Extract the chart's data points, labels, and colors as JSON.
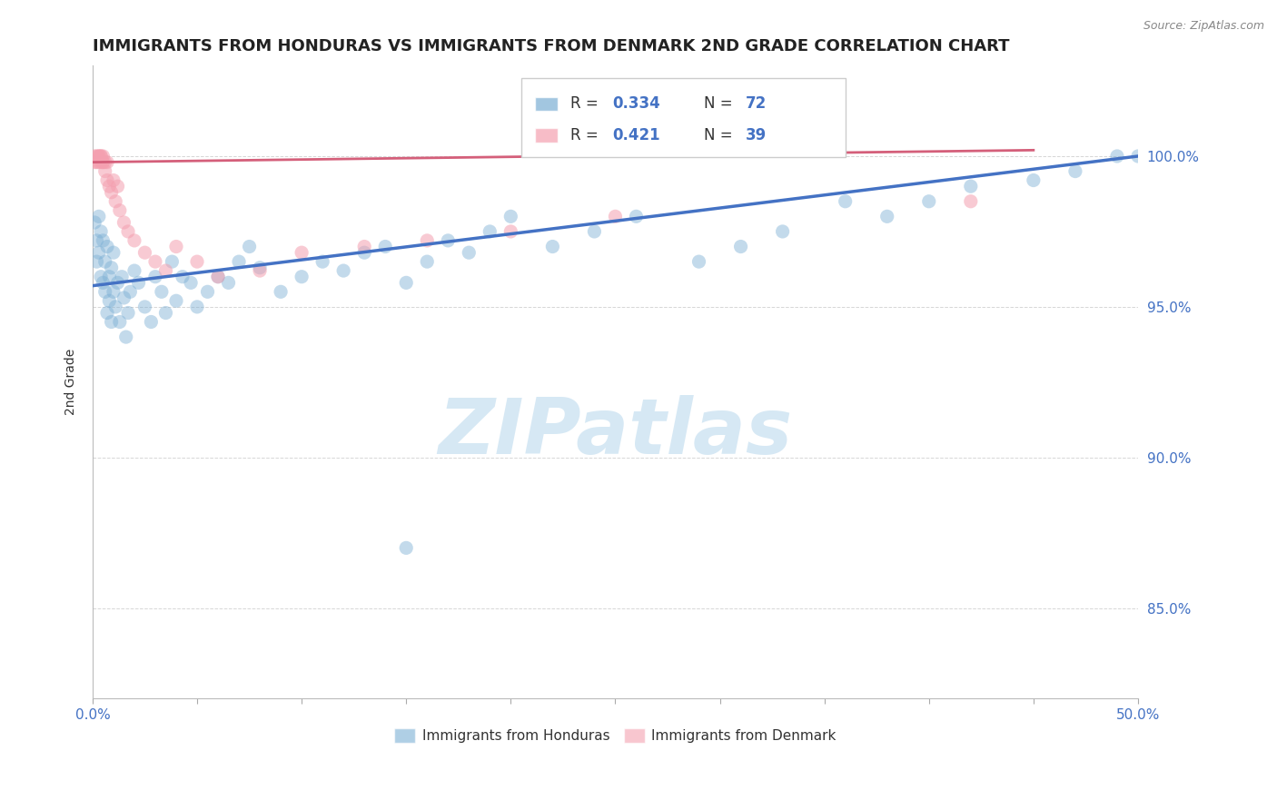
{
  "title": "IMMIGRANTS FROM HONDURAS VS IMMIGRANTS FROM DENMARK 2ND GRADE CORRELATION CHART",
  "source": "Source: ZipAtlas.com",
  "ylabel": "2nd Grade",
  "xlim": [
    0.0,
    0.5
  ],
  "ylim": [
    0.82,
    1.03
  ],
  "xticks": [
    0.0,
    0.05,
    0.1,
    0.15,
    0.2,
    0.25,
    0.3,
    0.35,
    0.4,
    0.45,
    0.5
  ],
  "xticklabels": [
    "0.0%",
    "",
    "",
    "",
    "",
    "",
    "",
    "",
    "",
    "",
    "50.0%"
  ],
  "yticks": [
    0.85,
    0.9,
    0.95,
    1.0
  ],
  "yticklabels": [
    "85.0%",
    "90.0%",
    "95.0%",
    "100.0%"
  ],
  "blue_color": "#7BAFD4",
  "pink_color": "#F4A0B0",
  "blue_line_color": "#4472C4",
  "pink_line_color": "#D45F7A",
  "legend_R_blue": "R = 0.334",
  "legend_N_blue": "N = 72",
  "legend_R_pink": "R = 0.421",
  "legend_N_pink": "N = 39",
  "legend_label_blue": "Immigrants from Honduras",
  "legend_label_pink": "Immigrants from Denmark",
  "watermark": "ZIPatlas",
  "watermark_color": "#C5DFF0",
  "title_fontsize": 13,
  "axis_label_fontsize": 10,
  "tick_fontsize": 11,
  "blue_scatter_x": [
    0.001,
    0.002,
    0.002,
    0.003,
    0.003,
    0.004,
    0.004,
    0.005,
    0.005,
    0.006,
    0.006,
    0.007,
    0.007,
    0.008,
    0.008,
    0.009,
    0.009,
    0.01,
    0.01,
    0.011,
    0.012,
    0.013,
    0.014,
    0.015,
    0.016,
    0.017,
    0.018,
    0.02,
    0.022,
    0.025,
    0.028,
    0.03,
    0.033,
    0.035,
    0.038,
    0.04,
    0.043,
    0.047,
    0.05,
    0.055,
    0.06,
    0.065,
    0.07,
    0.075,
    0.08,
    0.09,
    0.1,
    0.11,
    0.12,
    0.13,
    0.14,
    0.15,
    0.16,
    0.17,
    0.18,
    0.19,
    0.2,
    0.22,
    0.24,
    0.26,
    0.29,
    0.31,
    0.33,
    0.36,
    0.38,
    0.4,
    0.42,
    0.45,
    0.47,
    0.49,
    0.5,
    0.15
  ],
  "blue_scatter_y": [
    0.978,
    0.972,
    0.965,
    0.98,
    0.968,
    0.975,
    0.96,
    0.972,
    0.958,
    0.965,
    0.955,
    0.97,
    0.948,
    0.96,
    0.952,
    0.963,
    0.945,
    0.968,
    0.955,
    0.95,
    0.958,
    0.945,
    0.96,
    0.953,
    0.94,
    0.948,
    0.955,
    0.962,
    0.958,
    0.95,
    0.945,
    0.96,
    0.955,
    0.948,
    0.965,
    0.952,
    0.96,
    0.958,
    0.95,
    0.955,
    0.96,
    0.958,
    0.965,
    0.97,
    0.963,
    0.955,
    0.96,
    0.965,
    0.962,
    0.968,
    0.97,
    0.958,
    0.965,
    0.972,
    0.968,
    0.975,
    0.98,
    0.97,
    0.975,
    0.98,
    0.965,
    0.97,
    0.975,
    0.985,
    0.98,
    0.985,
    0.99,
    0.992,
    0.995,
    1.0,
    1.0,
    0.87
  ],
  "pink_scatter_x": [
    0.001,
    0.001,
    0.002,
    0.002,
    0.003,
    0.003,
    0.003,
    0.004,
    0.004,
    0.004,
    0.005,
    0.005,
    0.005,
    0.006,
    0.006,
    0.007,
    0.007,
    0.008,
    0.009,
    0.01,
    0.011,
    0.012,
    0.013,
    0.015,
    0.017,
    0.02,
    0.025,
    0.03,
    0.035,
    0.04,
    0.05,
    0.06,
    0.08,
    0.1,
    0.13,
    0.16,
    0.2,
    0.25,
    0.42
  ],
  "pink_scatter_y": [
    0.998,
    1.0,
    1.0,
    0.998,
    1.0,
    1.0,
    0.998,
    1.0,
    0.998,
    1.0,
    0.998,
    1.0,
    0.998,
    0.998,
    0.995,
    0.998,
    0.992,
    0.99,
    0.988,
    0.992,
    0.985,
    0.99,
    0.982,
    0.978,
    0.975,
    0.972,
    0.968,
    0.965,
    0.962,
    0.97,
    0.965,
    0.96,
    0.962,
    0.968,
    0.97,
    0.972,
    0.975,
    0.98,
    0.985
  ],
  "blue_trend_x": [
    0.0,
    0.5
  ],
  "blue_trend_y": [
    0.957,
    1.0
  ],
  "pink_trend_x": [
    0.0,
    0.45
  ],
  "pink_trend_y": [
    0.998,
    1.002
  ]
}
